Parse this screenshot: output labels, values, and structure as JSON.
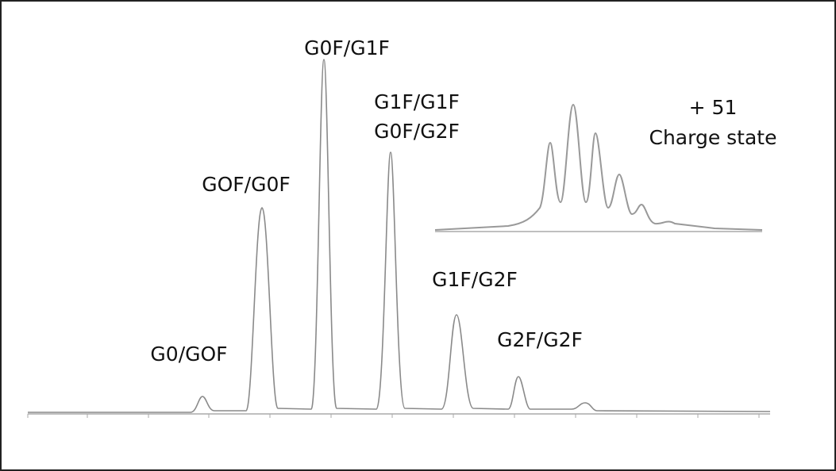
{
  "peak_labels": [
    "G0/GOF",
    "GOF/G0F",
    "G0F/G1F",
    [
      "G1F/G1F",
      "G0F/G2F"
    ],
    "G1F/G2F",
    "G2F/G2F"
  ],
  "inset": {
    "lines": [
      "+ 51",
      "Charge state"
    ]
  }
}
